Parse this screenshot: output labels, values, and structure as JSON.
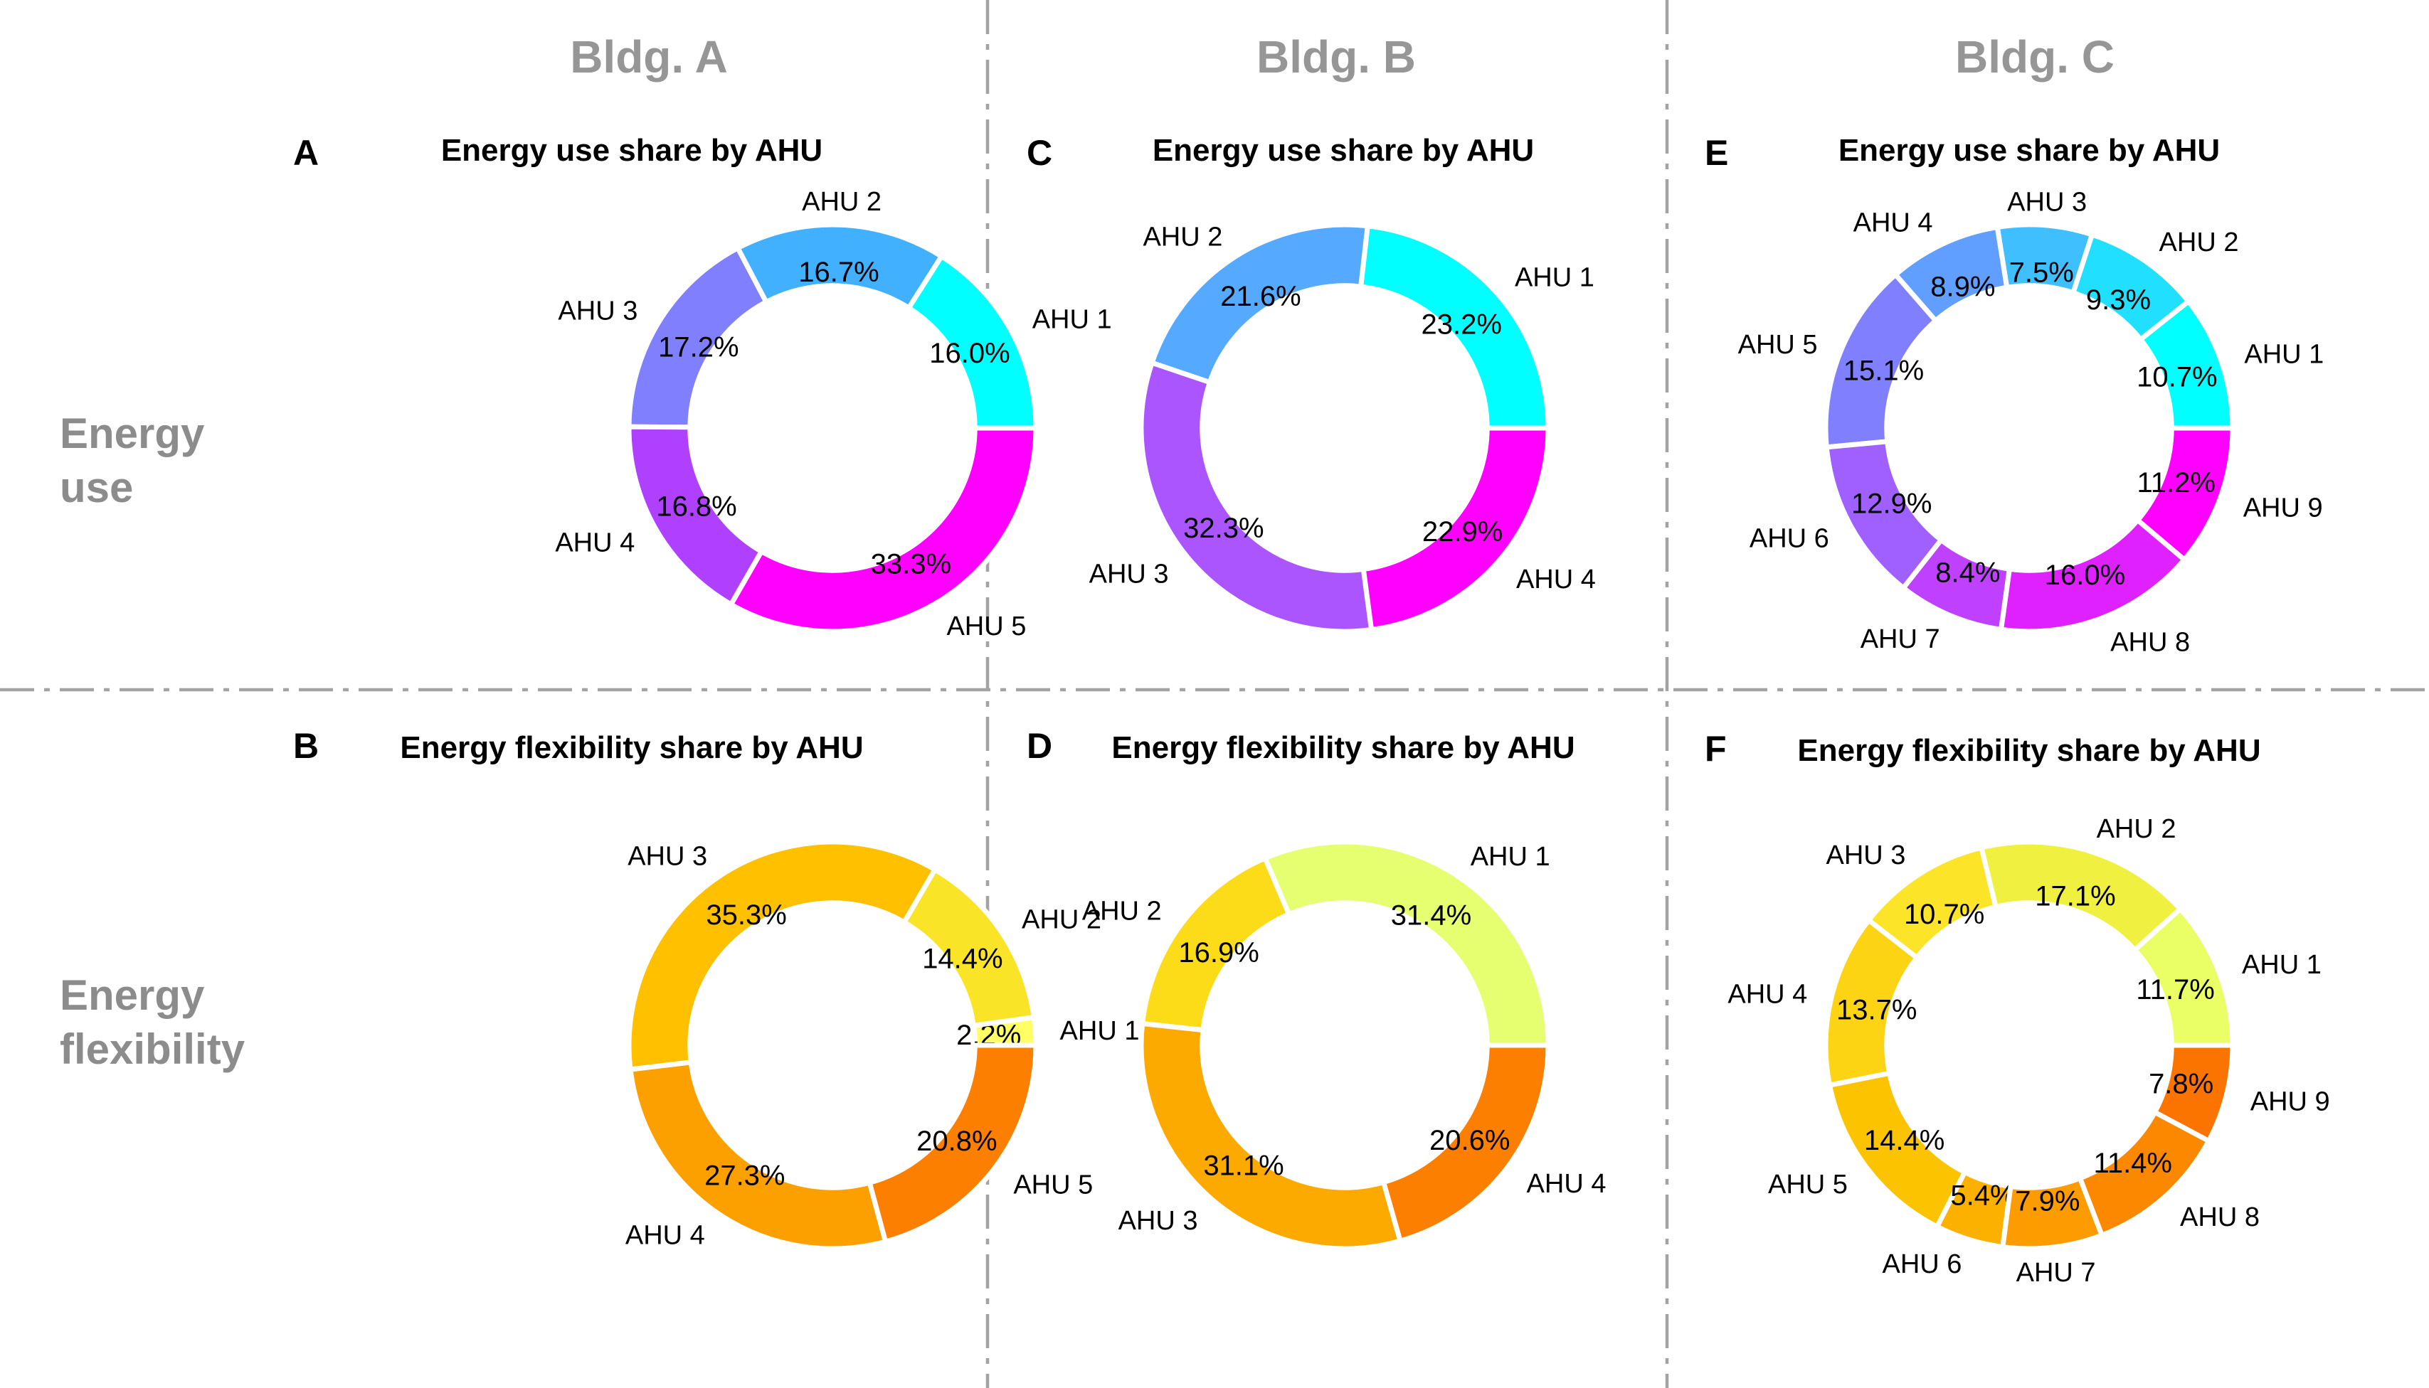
{
  "columns": [
    "Bldg. A",
    "Bldg. B",
    "Bldg. C"
  ],
  "rows": [
    "Energy\nuse",
    "Energy\nflexibility"
  ],
  "chart_data": [
    {
      "type": "pie",
      "donut": true,
      "panel": "A",
      "title": "Energy use share by AHU",
      "labels": [
        "AHU 1",
        "AHU 2",
        "AHU 3",
        "AHU 4",
        "AHU 5"
      ],
      "values": [
        16.0,
        16.7,
        17.2,
        16.8,
        33.3
      ],
      "value_labels": [
        "16.0%",
        "16.7%",
        "17.2%",
        "16.8%",
        "33.3%"
      ],
      "colors": [
        "#00ffff",
        "#40b0ff",
        "#8080ff",
        "#b040ff",
        "#ff00ff"
      ]
    },
    {
      "type": "pie",
      "donut": true,
      "panel": "B",
      "title": "Energy flexibility share by AHU",
      "labels": [
        "AHU 1",
        "AHU 2",
        "AHU 3",
        "AHU 4",
        "AHU 5"
      ],
      "values": [
        2.2,
        14.4,
        35.3,
        27.3,
        20.8
      ],
      "value_labels": [
        "2.2%",
        "14.4%",
        "35.3%",
        "27.3%",
        "20.8%"
      ],
      "colors": [
        "#ffff66",
        "#fae428",
        "#ffc000",
        "#fca000",
        "#fc7f00"
      ]
    },
    {
      "type": "pie",
      "donut": true,
      "panel": "C",
      "title": "Energy use share by AHU",
      "labels": [
        "AHU 1",
        "AHU 2",
        "AHU 3",
        "AHU 4"
      ],
      "values": [
        23.2,
        21.6,
        32.3,
        22.9
      ],
      "value_labels": [
        "23.2%",
        "21.6%",
        "32.3%",
        "22.9%"
      ],
      "colors": [
        "#00ffff",
        "#55aaff",
        "#aa55ff",
        "#ff00ff"
      ]
    },
    {
      "type": "pie",
      "donut": true,
      "panel": "D",
      "title": "Energy flexibility share by AHU",
      "labels": [
        "AHU 1",
        "AHU 2",
        "AHU 3",
        "AHU 4"
      ],
      "values": [
        31.4,
        16.9,
        31.1,
        20.6
      ],
      "value_labels": [
        "31.4%",
        "16.9%",
        "31.1%",
        "20.6%"
      ],
      "colors": [
        "#e5ff70",
        "#fcdc18",
        "#fcaa00",
        "#fc7f00"
      ]
    },
    {
      "type": "pie",
      "donut": true,
      "panel": "E",
      "title": "Energy use share by AHU",
      "labels": [
        "AHU 1",
        "AHU 2",
        "AHU 3",
        "AHU 4",
        "AHU 5",
        "AHU 6",
        "AHU 7",
        "AHU 8",
        "AHU 9"
      ],
      "values": [
        10.7,
        9.3,
        7.5,
        8.9,
        15.1,
        12.9,
        8.4,
        16.0,
        11.2
      ],
      "value_labels": [
        "10.7%",
        "9.3%",
        "7.5%",
        "8.9%",
        "15.1%",
        "12.9%",
        "8.4%",
        "16.0%",
        "11.2%"
      ],
      "colors": [
        "#00ffff",
        "#20dfff",
        "#40bfff",
        "#609fff",
        "#8080ff",
        "#9f60ff",
        "#bf40ff",
        "#df20ff",
        "#ff00ff"
      ]
    },
    {
      "type": "pie",
      "donut": true,
      "panel": "F",
      "title": "Energy flexibility share by AHU",
      "labels": [
        "AHU 1",
        "AHU 2",
        "AHU 3",
        "AHU 4",
        "AHU 5",
        "AHU 6",
        "AHU 7",
        "AHU 8",
        "AHU 9"
      ],
      "values": [
        11.7,
        17.1,
        10.7,
        13.7,
        14.4,
        5.4,
        7.9,
        11.4,
        7.8
      ],
      "value_labels": [
        "11.7%",
        "17.1%",
        "10.7%",
        "13.7%",
        "14.4%",
        "5.4%",
        "7.9%",
        "11.4%",
        "7.8%"
      ],
      "colors": [
        "#eaff66",
        "#f0f040",
        "#fce428",
        "#fcd414",
        "#fcc400",
        "#fcb000",
        "#fc9c00",
        "#fc8800",
        "#fc7400"
      ]
    }
  ]
}
